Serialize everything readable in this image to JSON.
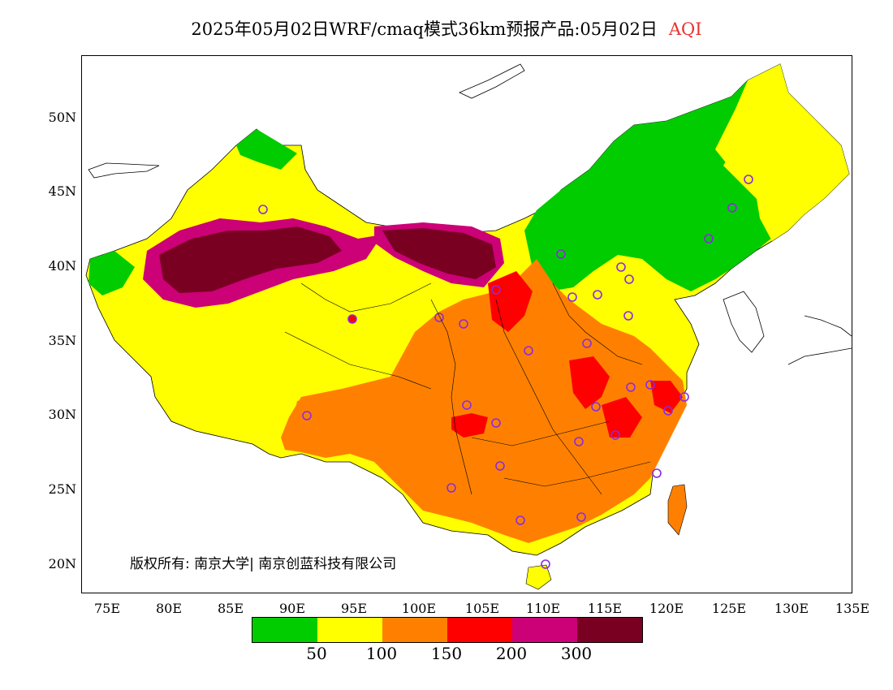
{
  "title": {
    "main": "2025年05月02日WRF/cmaq模式36km预报产品:05月02日",
    "variable": "AQI"
  },
  "axes": {
    "lat_labels": [
      "50N",
      "45N",
      "40N",
      "35N",
      "30N",
      "25N",
      "20N"
    ],
    "lon_labels": [
      "75E",
      "80E",
      "85E",
      "90E",
      "95E",
      "100E",
      "105E",
      "110E",
      "115E",
      "120E",
      "125E",
      "130E",
      "135E"
    ]
  },
  "copyright": "版权所有: 南京大学| 南京创蓝科技有限公司",
  "legend": {
    "colors": [
      "#00cc00",
      "#ffff00",
      "#ff8000",
      "#ff0000",
      "#cc0077",
      "#7a0022"
    ],
    "labels": [
      "50",
      "100",
      "150",
      "200",
      "300"
    ]
  },
  "colors": {
    "good": "#00cc00",
    "moderate": "#ffff00",
    "unhealthy_sensitive": "#ff8000",
    "unhealthy": "#ff0000",
    "very_unhealthy": "#cc0077",
    "hazardous": "#7a0022",
    "station_marker": "#8a2be2"
  }
}
